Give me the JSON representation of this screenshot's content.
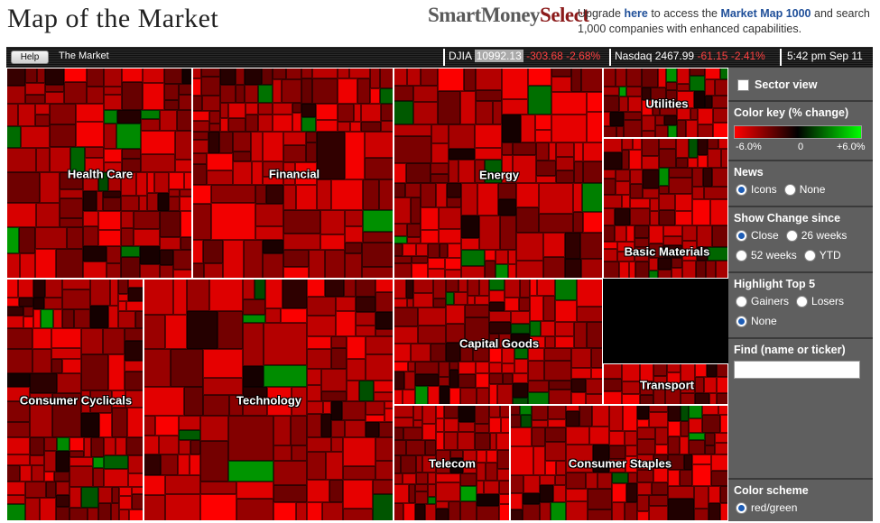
{
  "header": {
    "title": "Map of the Market",
    "brand_part1": "SmartMoney",
    "brand_part2": "Select",
    "upgrade": {
      "pre": "Upgrade ",
      "here": "here",
      "mid": " to access the ",
      "link": "Market Map 1000",
      "post": " and search 1,000 companies with enhanced capabilities."
    }
  },
  "toolbar": {
    "help_label": "Help",
    "breadcrumb": "The Market",
    "djia": {
      "label": "DJIA",
      "value": "10992.13",
      "change": "-303.68",
      "pct": "-2.68%"
    },
    "nasdaq": {
      "label": "Nasdaq",
      "value": "2467.99",
      "change": "-61.15",
      "pct": "-2.41%"
    },
    "time": "5:42 pm Sep 11"
  },
  "sectors": [
    {
      "name": "Health Care"
    },
    {
      "name": "Financial"
    },
    {
      "name": "Energy"
    },
    {
      "name": "Utilities"
    },
    {
      "name": "Basic Materials"
    },
    {
      "name": "Consumer Cyclicals"
    },
    {
      "name": "Technology"
    },
    {
      "name": "Capital Goods"
    },
    {
      "name": "Transport"
    },
    {
      "name": "Telecom"
    },
    {
      "name": "Consumer Staples"
    }
  ],
  "panel": {
    "sector_view": "Sector view",
    "color_key": {
      "title": "Color key (% change)",
      "min": "-6.0%",
      "mid": "0",
      "max": "+6.0%",
      "low_color": "#ff0000",
      "mid_color": "#000000",
      "high_color": "#00ff00"
    },
    "news": {
      "title": "News",
      "options": [
        "Icons",
        "None"
      ],
      "selected": "Icons"
    },
    "show_change": {
      "title": "Show Change since",
      "options": [
        "Close",
        "26 weeks",
        "52 weeks",
        "YTD"
      ],
      "selected": "Close"
    },
    "highlight": {
      "title": "Highlight Top 5",
      "options": [
        "Gainers",
        "Losers",
        "None"
      ],
      "selected": "None"
    },
    "find": {
      "title": "Find (name or ticker)",
      "value": ""
    },
    "color_scheme": {
      "title": "Color scheme",
      "options": [
        "red/green"
      ],
      "selected": "red/green"
    }
  }
}
